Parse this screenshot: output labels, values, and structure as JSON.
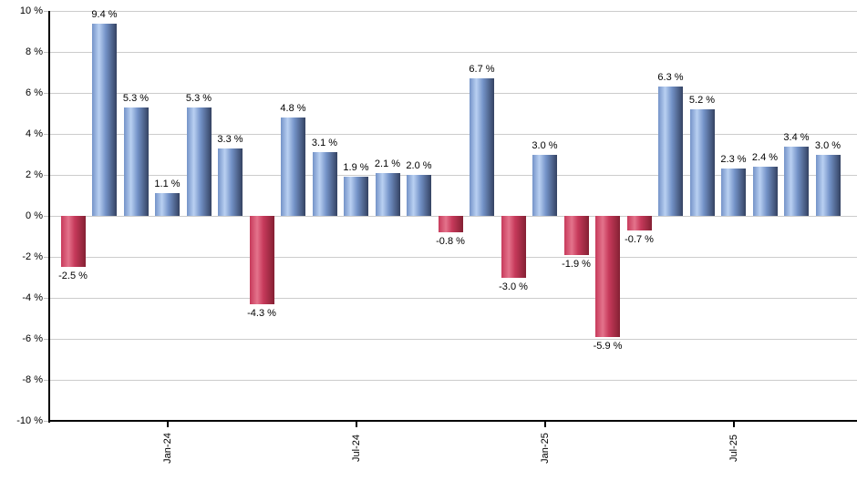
{
  "chart_data": {
    "type": "bar",
    "title": "",
    "unit": "%",
    "grid": "horizontal",
    "legend": "none",
    "ylim": [
      -10,
      10
    ],
    "y_tick_step": 2,
    "y_ticks": [
      {
        "value": 10,
        "label": "10 %"
      },
      {
        "value": 8,
        "label": "8 %"
      },
      {
        "value": 6,
        "label": "6 %"
      },
      {
        "value": 4,
        "label": "4 %"
      },
      {
        "value": 2,
        "label": "2 %"
      },
      {
        "value": 0,
        "label": "0 %"
      },
      {
        "value": -2,
        "label": "-2 %"
      },
      {
        "value": -4,
        "label": "-4 %"
      },
      {
        "value": -6,
        "label": "-6 %"
      },
      {
        "value": -8,
        "label": "-8 %"
      },
      {
        "value": -10,
        "label": "-10 %"
      }
    ],
    "x_ticks": [
      {
        "bar_index": 3,
        "label": "Jan-24"
      },
      {
        "bar_index": 9,
        "label": "Jul-24"
      },
      {
        "bar_index": 15,
        "label": "Jan-25"
      },
      {
        "bar_index": 21,
        "label": "Jul-25"
      }
    ],
    "series": [
      {
        "name": "monthly-return-percent",
        "values": [
          -2.5,
          9.4,
          5.3,
          1.1,
          5.3,
          3.3,
          -4.3,
          4.8,
          3.1,
          1.9,
          2.1,
          2.0,
          -0.8,
          6.7,
          -3.0,
          3.0,
          -1.9,
          -5.9,
          -0.7,
          6.3,
          5.2,
          2.3,
          2.4,
          3.4,
          3.0
        ],
        "labels": [
          "-2.5 %",
          "9.4 %",
          "5.3 %",
          "1.1 %",
          "5.3 %",
          "3.3 %",
          "-4.3 %",
          "4.8 %",
          "3.1 %",
          "1.9 %",
          "2.1 %",
          "2.0 %",
          "-0.8 %",
          "6.7 %",
          "-3.0 %",
          "3.0 %",
          "-1.9 %",
          "-5.9 %",
          "-0.7 %",
          "6.3 %",
          "5.2 %",
          "2.3 %",
          "2.4 %",
          "3.4 %",
          "3.0 %"
        ]
      }
    ],
    "colors": {
      "positive_light": "#b9d0f2",
      "positive_mid": "#7493c8",
      "positive_dark": "#344262",
      "negative_light": "#e4738c",
      "negative_mid": "#c73a5b",
      "negative_dark": "#842033",
      "gridline": "#cccccc",
      "axis": "#000000",
      "label_text": "#000000"
    }
  }
}
